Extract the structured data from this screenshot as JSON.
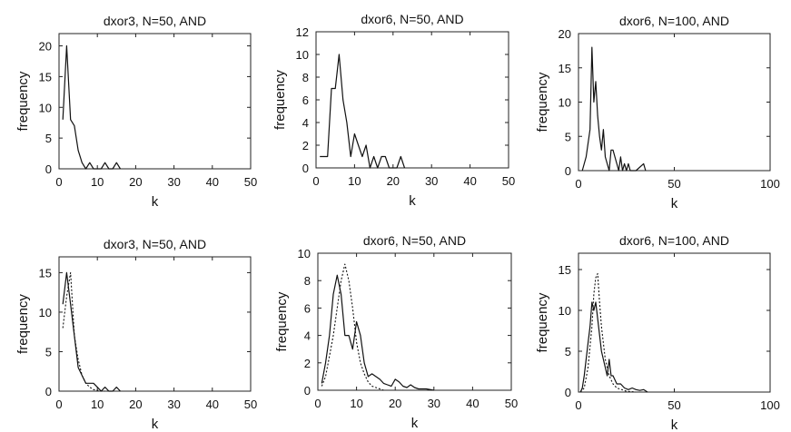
{
  "chart_data": [
    {
      "type": "line",
      "title": "dxor3, N=50, AND",
      "xlabel": "k",
      "ylabel": "frequency",
      "xlim": [
        0,
        50
      ],
      "ylim": [
        0,
        22
      ],
      "xticks": [
        0,
        10,
        20,
        30,
        40,
        50
      ],
      "yticks": [
        0,
        5,
        10,
        15,
        20
      ],
      "series": [
        {
          "style": "solid",
          "points": [
            [
              1,
              8
            ],
            [
              2,
              20
            ],
            [
              3,
              8
            ],
            [
              4,
              7
            ],
            [
              5,
              3
            ],
            [
              6,
              1
            ],
            [
              7,
              0
            ],
            [
              8,
              1
            ],
            [
              9,
              0
            ],
            [
              10,
              0
            ],
            [
              11,
              0
            ],
            [
              12,
              1
            ],
            [
              13,
              0
            ],
            [
              14,
              0
            ],
            [
              15,
              1
            ],
            [
              16,
              0
            ]
          ]
        }
      ]
    },
    {
      "type": "line",
      "title": "dxor6, N=50, AND",
      "xlabel": "k",
      "ylabel": "frequency",
      "xlim": [
        0,
        50
      ],
      "ylim": [
        0,
        12
      ],
      "xticks": [
        0,
        10,
        20,
        30,
        40,
        50
      ],
      "yticks": [
        0,
        2,
        4,
        6,
        8,
        10,
        12
      ],
      "series": [
        {
          "style": "solid",
          "points": [
            [
              1,
              1
            ],
            [
              2,
              1
            ],
            [
              3,
              1
            ],
            [
              4,
              7
            ],
            [
              5,
              7
            ],
            [
              6,
              10
            ],
            [
              7,
              6
            ],
            [
              8,
              4
            ],
            [
              9,
              1
            ],
            [
              10,
              3
            ],
            [
              11,
              2
            ],
            [
              12,
              1
            ],
            [
              13,
              2
            ],
            [
              14,
              0
            ],
            [
              15,
              1
            ],
            [
              16,
              0
            ],
            [
              17,
              1
            ],
            [
              18,
              1
            ],
            [
              19,
              0
            ],
            [
              20,
              0
            ],
            [
              21,
              0
            ],
            [
              22,
              1
            ],
            [
              23,
              0
            ]
          ]
        }
      ]
    },
    {
      "type": "line",
      "title": "dxor6, N=100, AND",
      "xlabel": "k",
      "ylabel": "frequency",
      "xlim": [
        0,
        100
      ],
      "ylim": [
        0,
        20
      ],
      "xticks": [
        0,
        50,
        100
      ],
      "yticks": [
        0,
        5,
        10,
        15,
        20
      ],
      "series": [
        {
          "style": "solid",
          "points": [
            [
              2,
              0
            ],
            [
              4,
              2
            ],
            [
              6,
              6
            ],
            [
              7,
              18
            ],
            [
              8,
              10
            ],
            [
              9,
              13
            ],
            [
              10,
              8
            ],
            [
              11,
              5
            ],
            [
              12,
              3
            ],
            [
              13,
              6
            ],
            [
              14,
              2
            ],
            [
              15,
              1
            ],
            [
              16,
              0
            ],
            [
              17,
              3
            ],
            [
              18,
              3
            ],
            [
              19,
              2
            ],
            [
              20,
              1
            ],
            [
              21,
              0
            ],
            [
              22,
              2
            ],
            [
              23,
              0
            ],
            [
              24,
              1
            ],
            [
              25,
              0
            ],
            [
              26,
              1
            ],
            [
              27,
              0
            ],
            [
              30,
              0
            ],
            [
              34,
              1
            ],
            [
              35,
              0
            ]
          ]
        }
      ]
    },
    {
      "type": "line",
      "title": "dxor3, N=50, AND",
      "xlabel": "k",
      "ylabel": "frequency",
      "xlim": [
        0,
        50
      ],
      "ylim": [
        0,
        17
      ],
      "xticks": [
        0,
        10,
        20,
        30,
        40,
        50
      ],
      "yticks": [
        0,
        5,
        10,
        15
      ],
      "series": [
        {
          "style": "solid",
          "points": [
            [
              1,
              11
            ],
            [
              2,
              15
            ],
            [
              3,
              11
            ],
            [
              4,
              7
            ],
            [
              5,
              3
            ],
            [
              6,
              2
            ],
            [
              7,
              1
            ],
            [
              8,
              1
            ],
            [
              9,
              1
            ],
            [
              10,
              0.5
            ],
            [
              11,
              0
            ],
            [
              12,
              0.5
            ],
            [
              13,
              0
            ],
            [
              14,
              0
            ],
            [
              15,
              0.5
            ],
            [
              16,
              0
            ]
          ]
        },
        {
          "style": "dotted",
          "points": [
            [
              1,
              8
            ],
            [
              2,
              12
            ],
            [
              3,
              15
            ],
            [
              4,
              7
            ],
            [
              5,
              4
            ],
            [
              6,
              2
            ],
            [
              7,
              1
            ],
            [
              8,
              0.5
            ],
            [
              9,
              0.2
            ],
            [
              10,
              0.1
            ],
            [
              12,
              0
            ]
          ]
        }
      ]
    },
    {
      "type": "line",
      "title": "dxor6, N=50, AND",
      "xlabel": "k",
      "ylabel": "frequency",
      "xlim": [
        0,
        50
      ],
      "ylim": [
        0,
        10
      ],
      "xticks": [
        0,
        10,
        20,
        30,
        40,
        50
      ],
      "yticks": [
        0,
        2,
        4,
        6,
        8,
        10
      ],
      "series": [
        {
          "style": "solid",
          "points": [
            [
              1,
              0.5
            ],
            [
              2,
              2
            ],
            [
              3,
              4
            ],
            [
              4,
              7
            ],
            [
              5,
              8.4
            ],
            [
              6,
              7
            ],
            [
              7,
              4
            ],
            [
              8,
              4
            ],
            [
              9,
              3
            ],
            [
              10,
              5
            ],
            [
              11,
              4
            ],
            [
              12,
              2
            ],
            [
              13,
              1
            ],
            [
              14,
              1.2
            ],
            [
              15,
              1
            ],
            [
              16,
              0.8
            ],
            [
              17,
              0.5
            ],
            [
              18,
              0.4
            ],
            [
              19,
              0.3
            ],
            [
              20,
              0.8
            ],
            [
              21,
              0.6
            ],
            [
              22,
              0.3
            ],
            [
              23,
              0.2
            ],
            [
              24,
              0.4
            ],
            [
              25,
              0.2
            ],
            [
              26,
              0.1
            ],
            [
              27,
              0.1
            ],
            [
              28,
              0.1
            ],
            [
              30,
              0
            ]
          ]
        },
        {
          "style": "dotted",
          "points": [
            [
              1,
              0.3
            ],
            [
              2,
              1
            ],
            [
              3,
              2.5
            ],
            [
              4,
              4
            ],
            [
              5,
              6
            ],
            [
              6,
              8
            ],
            [
              7,
              9.2
            ],
            [
              8,
              8
            ],
            [
              9,
              6
            ],
            [
              10,
              3.5
            ],
            [
              11,
              2
            ],
            [
              12,
              1.2
            ],
            [
              13,
              0.6
            ],
            [
              14,
              0.3
            ],
            [
              15,
              0.2
            ],
            [
              17,
              0
            ]
          ]
        }
      ]
    },
    {
      "type": "line",
      "title": "dxor6, N=100, AND",
      "xlabel": "k",
      "ylabel": "frequency",
      "xlim": [
        0,
        100
      ],
      "ylim": [
        0,
        17
      ],
      "xticks": [
        0,
        50,
        100
      ],
      "yticks": [
        0,
        5,
        10,
        15
      ],
      "series": [
        {
          "style": "solid",
          "points": [
            [
              1,
              0
            ],
            [
              2,
              0.5
            ],
            [
              3,
              2
            ],
            [
              4,
              4
            ],
            [
              5,
              6
            ],
            [
              6,
              8
            ],
            [
              7,
              11
            ],
            [
              8,
              10
            ],
            [
              9,
              11
            ],
            [
              10,
              9
            ],
            [
              11,
              7
            ],
            [
              12,
              5
            ],
            [
              13,
              4
            ],
            [
              14,
              3
            ],
            [
              15,
              2
            ],
            [
              16,
              4
            ],
            [
              17,
              2
            ],
            [
              18,
              2
            ],
            [
              19,
              1.5
            ],
            [
              20,
              1
            ],
            [
              22,
              1
            ],
            [
              24,
              0.5
            ],
            [
              26,
              0.3
            ],
            [
              28,
              0.5
            ],
            [
              30,
              0.3
            ],
            [
              32,
              0.2
            ],
            [
              34,
              0.3
            ],
            [
              36,
              0
            ]
          ]
        },
        {
          "style": "dotted",
          "points": [
            [
              1,
              0
            ],
            [
              3,
              0.5
            ],
            [
              5,
              3
            ],
            [
              7,
              8
            ],
            [
              8,
              12
            ],
            [
              9,
              14
            ],
            [
              10,
              14.5
            ],
            [
              11,
              11
            ],
            [
              12,
              8
            ],
            [
              13,
              6
            ],
            [
              14,
              4
            ],
            [
              15,
              3
            ],
            [
              16,
              2
            ],
            [
              18,
              1
            ],
            [
              20,
              0.5
            ],
            [
              25,
              0.1
            ],
            [
              30,
              0
            ]
          ]
        }
      ]
    }
  ]
}
